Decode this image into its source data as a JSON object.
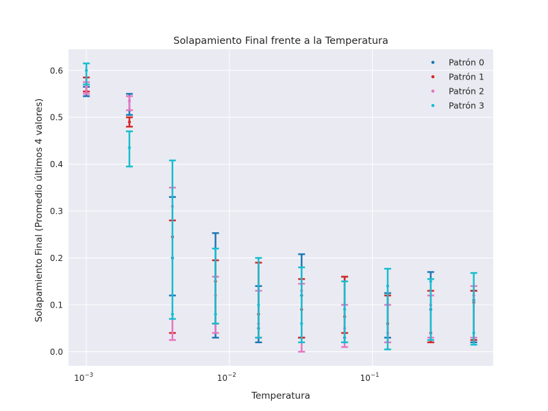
{
  "chart_data": {
    "type": "scatter",
    "title": "Solapamiento Final frente a la Temperatura",
    "xlabel": "Temperatura",
    "ylabel": "Solapamiento Final (Promedio últimos 4 valores)",
    "xscale": "log",
    "xlim": [
      0.00075,
      0.7
    ],
    "ylim": [
      -0.03,
      0.645
    ],
    "yticks": [
      0.0,
      0.1,
      0.2,
      0.3,
      0.4,
      0.5,
      0.6
    ],
    "ytick_labels": [
      "0.0",
      "0.1",
      "0.2",
      "0.3",
      "0.4",
      "0.5",
      "0.6"
    ],
    "xticks": [
      0.001,
      0.01,
      0.1
    ],
    "xtick_labels": [
      {
        "base": "10",
        "exp": "−3"
      },
      {
        "base": "10",
        "exp": "−2"
      },
      {
        "base": "10",
        "exp": "−1"
      }
    ],
    "grid": true,
    "legend_position": "top-right",
    "x": [
      0.001,
      0.002,
      0.004,
      0.008,
      0.016,
      0.032,
      0.064,
      0.128,
      0.256,
      0.512
    ],
    "series": [
      {
        "name": "Patrón 0",
        "color": "#1f77b4",
        "groups": [
          {
            "mean": 0.555,
            "low": 0.545,
            "high": 0.565
          },
          {
            "mean": 0.515,
            "low": 0.505,
            "high": 0.55
          },
          {
            "mean": 0.2,
            "low": 0.12,
            "high": 0.33
          },
          {
            "mean": 0.16,
            "low": 0.03,
            "high": 0.253
          },
          {
            "mean": 0.05,
            "low": 0.02,
            "high": 0.14
          },
          {
            "mean": 0.12,
            "low": 0.03,
            "high": 0.208
          },
          {
            "mean": 0.03,
            "low": 0.02,
            "high": 0.16
          },
          {
            "mean": 0.1,
            "low": 0.03,
            "high": 0.125
          },
          {
            "mean": 0.09,
            "low": 0.02,
            "high": 0.17
          },
          {
            "mean": 0.11,
            "low": 0.02,
            "high": 0.13
          }
        ]
      },
      {
        "name": "Patrón 1",
        "color": "#d62728",
        "groups": [
          {
            "mean": 0.57,
            "low": 0.555,
            "high": 0.585
          },
          {
            "mean": 0.49,
            "low": 0.48,
            "high": 0.5
          },
          {
            "mean": 0.245,
            "low": 0.04,
            "high": 0.28
          },
          {
            "mean": 0.15,
            "low": 0.06,
            "high": 0.195
          },
          {
            "mean": 0.08,
            "low": 0.03,
            "high": 0.19
          },
          {
            "mean": 0.09,
            "low": 0.03,
            "high": 0.155
          },
          {
            "mean": 0.075,
            "low": 0.04,
            "high": 0.16
          },
          {
            "mean": 0.06,
            "low": 0.02,
            "high": 0.12
          },
          {
            "mean": 0.04,
            "low": 0.02,
            "high": 0.13
          },
          {
            "mean": 0.105,
            "low": 0.025,
            "high": 0.13
          }
        ]
      },
      {
        "name": "Patrón 2",
        "color": "#e377c2",
        "groups": [
          {
            "mean": 0.565,
            "low": 0.55,
            "high": 0.575
          },
          {
            "mean": 0.535,
            "low": 0.515,
            "high": 0.545
          },
          {
            "mean": 0.31,
            "low": 0.025,
            "high": 0.35
          },
          {
            "mean": 0.12,
            "low": 0.04,
            "high": 0.16
          },
          {
            "mean": 0.06,
            "low": 0.03,
            "high": 0.13
          },
          {
            "mean": 0.13,
            "low": 0.0,
            "high": 0.145
          },
          {
            "mean": 0.05,
            "low": 0.01,
            "high": 0.1
          },
          {
            "mean": 0.04,
            "low": 0.02,
            "high": 0.1
          },
          {
            "mean": 0.1,
            "low": 0.03,
            "high": 0.12
          },
          {
            "mean": 0.12,
            "low": 0.03,
            "high": 0.14
          }
        ]
      },
      {
        "name": "Patrón 3",
        "color": "#17becf",
        "groups": [
          {
            "mean": 0.6,
            "low": 0.57,
            "high": 0.615
          },
          {
            "mean": 0.435,
            "low": 0.395,
            "high": 0.47
          },
          {
            "mean": 0.08,
            "low": 0.07,
            "high": 0.408
          },
          {
            "mean": 0.08,
            "low": 0.06,
            "high": 0.22
          },
          {
            "mean": 0.1,
            "low": 0.03,
            "high": 0.2
          },
          {
            "mean": 0.06,
            "low": 0.02,
            "high": 0.18
          },
          {
            "mean": 0.09,
            "low": 0.02,
            "high": 0.15
          },
          {
            "mean": 0.14,
            "low": 0.005,
            "high": 0.177
          },
          {
            "mean": 0.15,
            "low": 0.025,
            "high": 0.155
          },
          {
            "mean": 0.04,
            "low": 0.015,
            "high": 0.168
          }
        ]
      }
    ]
  },
  "colors": {
    "plot_background": "#eaeaf2",
    "grid": "#ffffff",
    "text": "#262626"
  }
}
